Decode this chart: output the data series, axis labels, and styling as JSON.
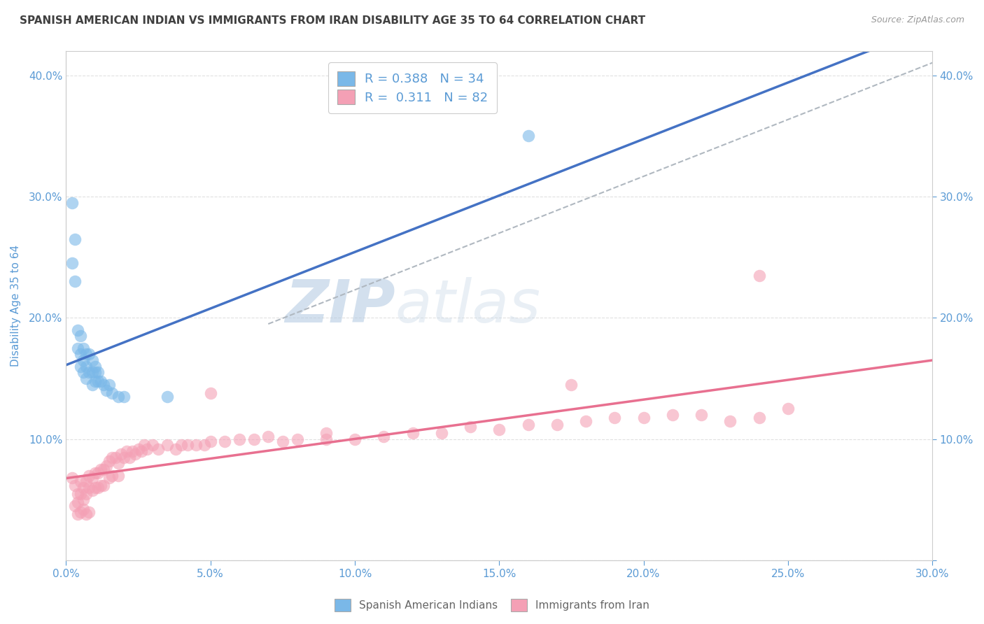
{
  "title": "SPANISH AMERICAN INDIAN VS IMMIGRANTS FROM IRAN DISABILITY AGE 35 TO 64 CORRELATION CHART",
  "source_text": "Source: ZipAtlas.com",
  "ylabel": "Disability Age 35 to 64",
  "xlim": [
    0.0,
    0.3
  ],
  "ylim": [
    0.0,
    0.42
  ],
  "x_tick_vals": [
    0.0,
    0.05,
    0.1,
    0.15,
    0.2,
    0.25,
    0.3
  ],
  "y_tick_vals": [
    0.0,
    0.1,
    0.2,
    0.3,
    0.4
  ],
  "blue_scatter_color": "#7ab8e8",
  "pink_scatter_color": "#f4a0b5",
  "trend_blue_color": "#4472c4",
  "trend_pink_color": "#e87090",
  "trend_gray_color": "#b0b8c0",
  "R_blue": 0.388,
  "N_blue": 34,
  "R_pink": 0.311,
  "N_pink": 82,
  "legend_blue_label": "Spanish American Indians",
  "legend_pink_label": "Immigrants from Iran",
  "watermark": "ZIPatlas",
  "blue_x": [
    0.002,
    0.002,
    0.003,
    0.003,
    0.004,
    0.004,
    0.005,
    0.005,
    0.005,
    0.006,
    0.006,
    0.006,
    0.007,
    0.007,
    0.007,
    0.008,
    0.008,
    0.009,
    0.009,
    0.009,
    0.01,
    0.01,
    0.01,
    0.011,
    0.011,
    0.012,
    0.013,
    0.014,
    0.015,
    0.016,
    0.018,
    0.02,
    0.035,
    0.16
  ],
  "blue_y": [
    0.295,
    0.245,
    0.265,
    0.23,
    0.19,
    0.175,
    0.185,
    0.17,
    0.16,
    0.175,
    0.165,
    0.155,
    0.17,
    0.16,
    0.15,
    0.17,
    0.155,
    0.165,
    0.155,
    0.145,
    0.16,
    0.155,
    0.148,
    0.155,
    0.148,
    0.148,
    0.145,
    0.14,
    0.145,
    0.138,
    0.135,
    0.135,
    0.135,
    0.35
  ],
  "pink_x": [
    0.002,
    0.003,
    0.004,
    0.004,
    0.005,
    0.005,
    0.006,
    0.006,
    0.007,
    0.007,
    0.008,
    0.008,
    0.009,
    0.009,
    0.01,
    0.01,
    0.011,
    0.011,
    0.012,
    0.012,
    0.013,
    0.013,
    0.014,
    0.015,
    0.015,
    0.016,
    0.016,
    0.017,
    0.018,
    0.018,
    0.019,
    0.02,
    0.021,
    0.022,
    0.023,
    0.024,
    0.025,
    0.026,
    0.027,
    0.028,
    0.03,
    0.032,
    0.035,
    0.038,
    0.04,
    0.042,
    0.045,
    0.048,
    0.05,
    0.055,
    0.06,
    0.065,
    0.07,
    0.075,
    0.08,
    0.09,
    0.1,
    0.11,
    0.12,
    0.13,
    0.14,
    0.15,
    0.16,
    0.17,
    0.175,
    0.18,
    0.19,
    0.2,
    0.21,
    0.22,
    0.23,
    0.24,
    0.25,
    0.003,
    0.004,
    0.005,
    0.006,
    0.007,
    0.008,
    0.05,
    0.09,
    0.24
  ],
  "pink_y": [
    0.068,
    0.062,
    0.055,
    0.048,
    0.065,
    0.055,
    0.06,
    0.05,
    0.065,
    0.055,
    0.07,
    0.06,
    0.068,
    0.058,
    0.072,
    0.06,
    0.072,
    0.06,
    0.075,
    0.062,
    0.075,
    0.062,
    0.078,
    0.082,
    0.068,
    0.085,
    0.07,
    0.085,
    0.08,
    0.07,
    0.088,
    0.085,
    0.09,
    0.085,
    0.09,
    0.088,
    0.092,
    0.09,
    0.095,
    0.092,
    0.095,
    0.092,
    0.095,
    0.092,
    0.095,
    0.095,
    0.095,
    0.095,
    0.098,
    0.098,
    0.1,
    0.1,
    0.102,
    0.098,
    0.1,
    0.1,
    0.1,
    0.102,
    0.105,
    0.105,
    0.11,
    0.108,
    0.112,
    0.112,
    0.145,
    0.115,
    0.118,
    0.118,
    0.12,
    0.12,
    0.115,
    0.118,
    0.125,
    0.045,
    0.038,
    0.04,
    0.042,
    0.038,
    0.04,
    0.138,
    0.105,
    0.235
  ],
  "bg_color": "#ffffff",
  "grid_color": "#e0e0e0",
  "title_color": "#404040",
  "tick_color": "#5b9bd5"
}
